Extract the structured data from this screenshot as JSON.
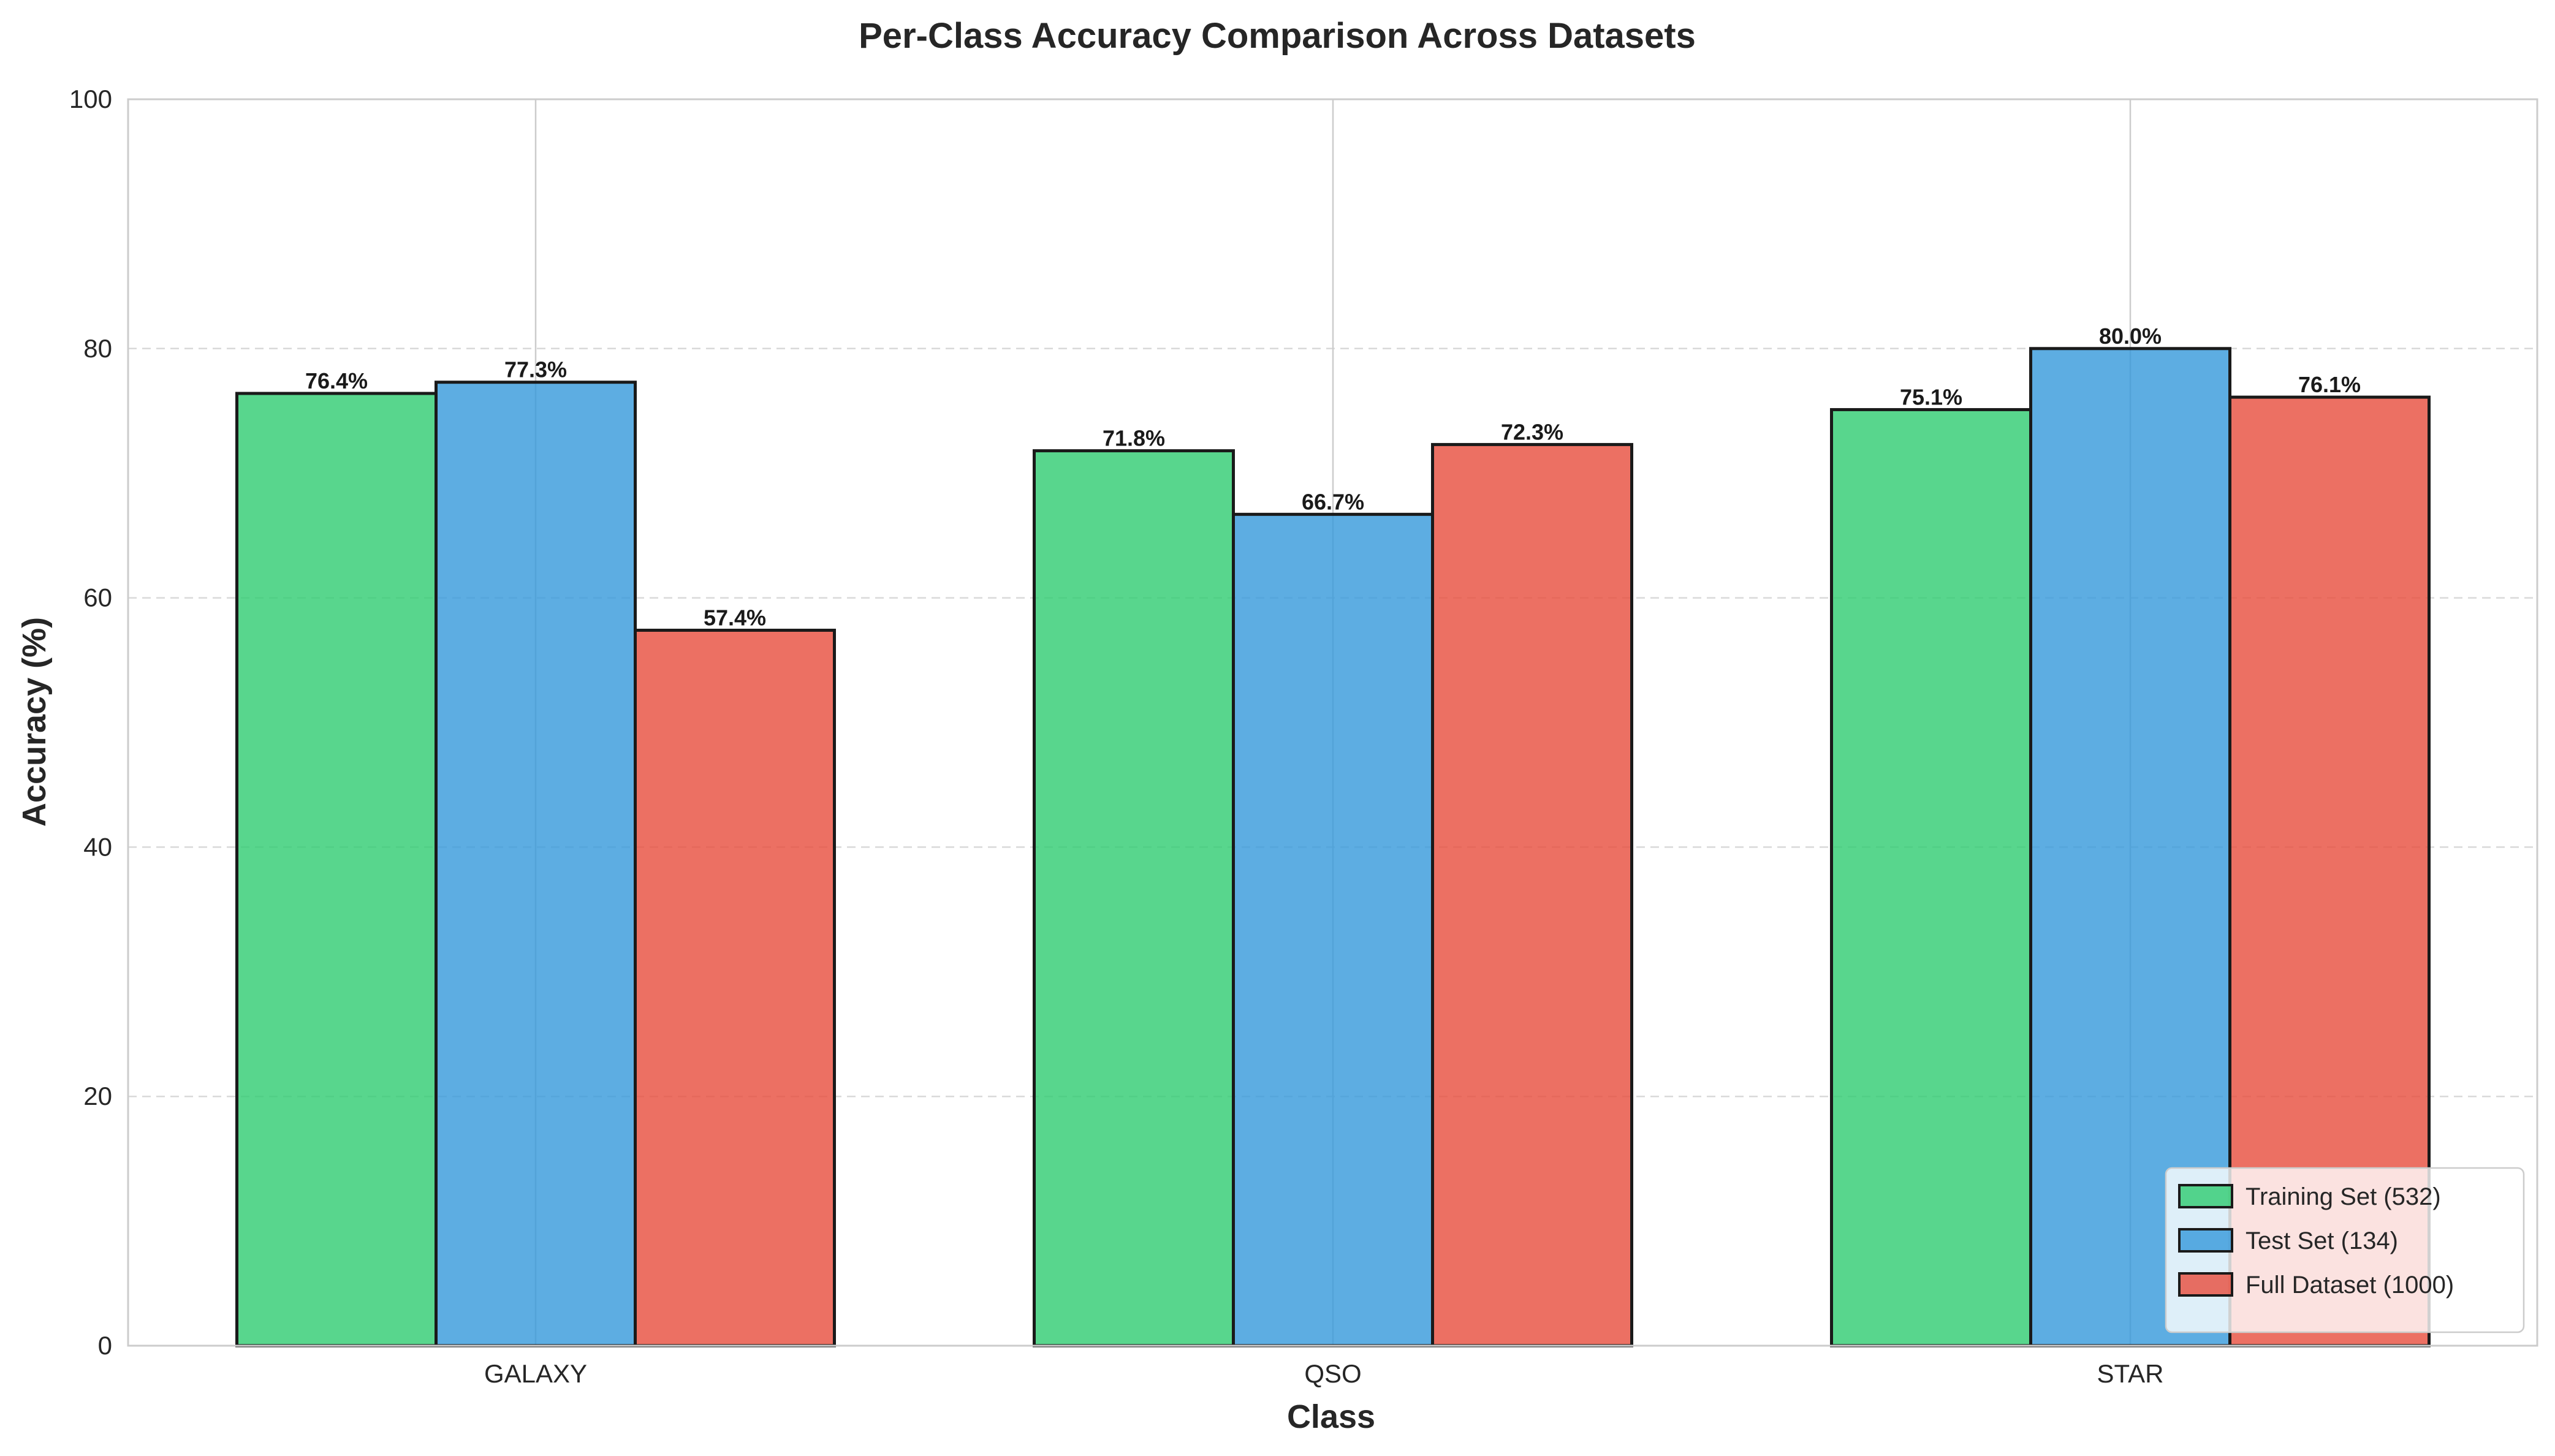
{
  "chart_data": {
    "type": "bar",
    "title": "Per-Class Accuracy Comparison Across Datasets",
    "xlabel": "Class",
    "ylabel": "Accuracy (%)",
    "categories": [
      "GALAXY",
      "QSO",
      "STAR"
    ],
    "series": [
      {
        "name": "Training Set (532)",
        "values": [
          76.4,
          71.8,
          75.1
        ],
        "labels": [
          "76.4%",
          "71.8%",
          "75.1%"
        ],
        "color": "#2ecc71"
      },
      {
        "name": "Test Set (134)",
        "values": [
          77.3,
          66.7,
          80.0
        ],
        "labels": [
          "77.3%",
          "66.7%",
          "80.0%"
        ],
        "color": "#3498db"
      },
      {
        "name": "Full Dataset (1000)",
        "values": [
          57.4,
          72.3,
          76.1
        ],
        "labels": [
          "57.4%",
          "72.3%",
          "76.1%"
        ],
        "color": "#e74c3c"
      }
    ],
    "ylim": [
      0,
      100
    ],
    "yticks": [
      "0",
      "20",
      "40",
      "60",
      "80",
      "100"
    ],
    "grid": "y-dashed",
    "legend_position": "lower-right"
  }
}
